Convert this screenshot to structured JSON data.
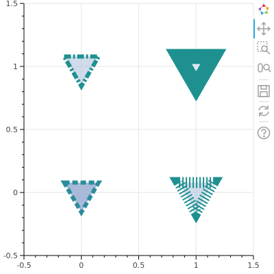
{
  "chart_data": {
    "type": "scatter",
    "title": "",
    "xlabel": "",
    "ylabel": "",
    "xlim": [
      -0.5,
      1.5
    ],
    "ylim": [
      -0.5,
      1.5
    ],
    "grid": true,
    "x_ticks": [
      "-0.5",
      "0",
      "0.5",
      "1",
      "1.5"
    ],
    "y_ticks": [
      "-0.5",
      "0",
      "0.5",
      "1",
      "1.5"
    ],
    "x_tick_values": [
      -0.5,
      0,
      0.5,
      1,
      1.5
    ],
    "y_tick_values": [
      -0.5,
      0,
      0.5,
      1,
      1.5
    ],
    "markers": [
      {
        "name": "marker-top-left",
        "x": 0,
        "y": 1,
        "size": 0.3,
        "shape": "inverted_triangle",
        "fill_alpha": 0.6,
        "line_dash": "dotdash",
        "fill": "#b0c4de",
        "line": "#1e9090",
        "line_weight": "medium"
      },
      {
        "name": "marker-top-right",
        "x": 1,
        "y": 1,
        "size": 0.3,
        "shape": "inverted_triangle",
        "fill_alpha": 0.3,
        "line_dash": "solid",
        "fill": "#b0c4de",
        "line": "#1e9090",
        "line_weight": "thick"
      },
      {
        "name": "marker-bottom-left",
        "x": 0,
        "y": 0,
        "size": 0.3,
        "shape": "inverted_triangle",
        "fill_alpha": 1.0,
        "line_dash": "dashed",
        "fill": "#a9b9d9",
        "line": "#2a8c9c",
        "line_weight": "medium"
      },
      {
        "name": "marker-bottom-right",
        "x": 1,
        "y": 0,
        "size": 0.3,
        "shape": "inverted_triangle",
        "fill_alpha": 0.6,
        "line_dash": "dotted",
        "fill": "#b0c4de",
        "line": "#1e9090",
        "line_weight": "hatched"
      }
    ]
  },
  "toolbar": {
    "items": [
      {
        "name": "bokeh-logo-icon",
        "label": "Bokeh"
      },
      {
        "name": "pan-tool-icon",
        "label": "Pan"
      },
      {
        "name": "box-zoom-tool-icon",
        "label": "Box Zoom"
      },
      {
        "name": "wheel-zoom-tool-icon",
        "label": "Wheel Zoom"
      },
      {
        "name": "save-tool-icon",
        "label": "Save"
      },
      {
        "name": "reset-tool-icon",
        "label": "Reset"
      },
      {
        "name": "help-tool-icon",
        "label": "Help"
      }
    ],
    "active_color": "#26aae1",
    "icon_color": "#a0a0a0"
  }
}
